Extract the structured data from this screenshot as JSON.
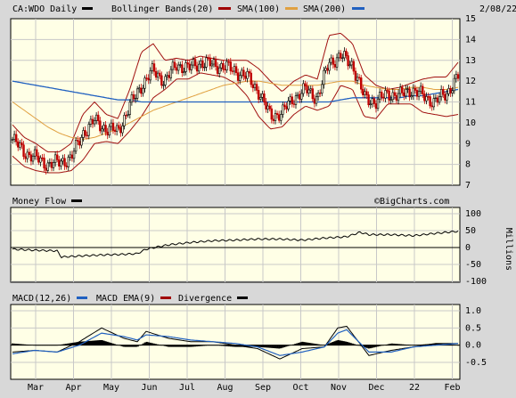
{
  "header": {
    "symbol": "CA:WDO Daily",
    "date": "2/08/22",
    "legend": [
      {
        "label": "Bollinger Bands(20)",
        "color": "#000000"
      },
      {
        "label": "SMA(100)",
        "color": "#a00000"
      },
      {
        "label": "SMA(200)",
        "color": "#e0a040"
      },
      {
        "label": "",
        "color": "#2060c0"
      }
    ]
  },
  "money_flow": {
    "title": "Money Flow",
    "watermark": "©BigCharts.com",
    "unit_label": "Millions"
  },
  "macd": {
    "legend": [
      {
        "label": "MACD(12,26)",
        "color": "#000000"
      },
      {
        "label": "MACD EMA(9)",
        "color": "#2060c0"
      },
      {
        "label": "Divergence",
        "color": "#000000"
      }
    ]
  },
  "colors": {
    "panel_bg": "#ffffe6",
    "grid": "#c8c8c8",
    "bollinger": "#a01010",
    "sma100": "#e0a040",
    "sma200": "#2060c0",
    "candle_up": "#000000",
    "candle_down": "#c00000"
  },
  "chart_data": [
    {
      "type": "candlestick",
      "panel": "price",
      "x_labels": [
        "Mar",
        "Apr",
        "May",
        "Jun",
        "Jul",
        "Aug",
        "Sep",
        "Oct",
        "Nov",
        "Dec",
        "22",
        "Feb"
      ],
      "ylim": [
        7,
        15
      ],
      "yticks": [
        7,
        8,
        9,
        10,
        11,
        12,
        13,
        14,
        15
      ],
      "close": [
        9.2,
        8.6,
        8.3,
        8.0,
        8.1,
        8.3,
        9.5,
        10.1,
        9.7,
        9.6,
        10.8,
        11.8,
        12.5,
        12.0,
        12.8,
        12.6,
        12.9,
        12.8,
        12.7,
        12.5,
        12.2,
        11.5,
        10.3,
        10.5,
        11.2,
        11.6,
        11.2,
        12.9,
        13.2,
        12.8,
        11.2,
        11.0,
        11.4,
        11.3,
        11.6,
        11.3,
        11.0,
        11.4,
        12.2
      ],
      "series": [
        {
          "name": "Bollinger Bands(20) upper",
          "values": [
            9.9,
            9.3,
            9.0,
            8.6,
            8.6,
            9.0,
            10.4,
            11.0,
            10.4,
            10.2,
            11.6,
            13.4,
            13.8,
            13.0,
            13.1,
            13.0,
            13.2,
            13.1,
            13.0,
            13.0,
            13.0,
            12.6,
            12.0,
            11.5,
            12.0,
            12.3,
            12.1,
            14.2,
            14.3,
            13.8,
            12.3,
            11.8,
            11.6,
            11.7,
            11.9,
            12.1,
            12.2,
            12.2,
            12.9
          ]
        },
        {
          "name": "Bollinger Bands(20) lower",
          "values": [
            8.4,
            7.9,
            7.7,
            7.6,
            7.6,
            7.7,
            8.2,
            9.0,
            9.1,
            9.0,
            9.6,
            10.3,
            11.2,
            11.6,
            12.1,
            12.1,
            12.4,
            12.3,
            12.2,
            11.9,
            11.3,
            10.3,
            9.7,
            9.8,
            10.4,
            10.8,
            10.6,
            10.8,
            11.8,
            11.6,
            10.3,
            10.2,
            10.9,
            10.9,
            10.9,
            10.5,
            10.4,
            10.3,
            10.4
          ]
        },
        {
          "name": "SMA(100)",
          "values": [
            11.0,
            10.6,
            10.2,
            9.8,
            9.5,
            9.3,
            9.2,
            9.3,
            9.5,
            9.7,
            10.0,
            10.3,
            10.6,
            10.8,
            11.0,
            11.2,
            11.4,
            11.6,
            11.8,
            11.9,
            12.0,
            12.0,
            11.9,
            11.8,
            11.8,
            11.8,
            11.8,
            11.9,
            12.0,
            12.0,
            11.8,
            11.7,
            11.6,
            11.6,
            11.7,
            11.7,
            11.6,
            11.6,
            11.7
          ]
        },
        {
          "name": "SMA(200)",
          "values": [
            12.0,
            11.9,
            11.8,
            11.7,
            11.6,
            11.5,
            11.4,
            11.3,
            11.2,
            11.1,
            11.1,
            11.0,
            11.0,
            11.0,
            11.0,
            11.0,
            11.0,
            11.0,
            11.0,
            11.0,
            11.0,
            11.0,
            11.0,
            11.0,
            11.0,
            11.0,
            11.0,
            11.0,
            11.1,
            11.2,
            11.2,
            11.2,
            11.2,
            11.2,
            11.3,
            11.3,
            11.4,
            11.5,
            11.6
          ]
        }
      ]
    },
    {
      "type": "line",
      "panel": "money_flow",
      "title": "Money Flow",
      "ylabel": "Millions",
      "ylim": [
        -100,
        100
      ],
      "yticks": [
        100,
        50,
        0,
        -50,
        -100
      ],
      "x": [
        0,
        0.05,
        0.1,
        0.11,
        0.15,
        0.2,
        0.25,
        0.28,
        0.3,
        0.35,
        0.4,
        0.45,
        0.5,
        0.55,
        0.6,
        0.65,
        0.7,
        0.75,
        0.78,
        0.8,
        0.85,
        0.9,
        0.95,
        1.0
      ],
      "values": [
        -5,
        -8,
        -10,
        -28,
        -25,
        -22,
        -20,
        -18,
        -5,
        8,
        15,
        20,
        22,
        25,
        25,
        22,
        28,
        32,
        45,
        38,
        38,
        35,
        42,
        48
      ]
    },
    {
      "type": "line",
      "panel": "macd",
      "ylim": [
        -0.5,
        1.0
      ],
      "yticks": [
        1.0,
        0.5,
        0.0,
        -0.5
      ],
      "x": [
        0,
        0.05,
        0.1,
        0.15,
        0.2,
        0.25,
        0.28,
        0.3,
        0.35,
        0.4,
        0.45,
        0.5,
        0.55,
        0.6,
        0.65,
        0.7,
        0.73,
        0.75,
        0.8,
        0.85,
        0.9,
        0.95,
        1.0
      ],
      "series": [
        {
          "name": "MACD(12,26)",
          "values": [
            -0.2,
            -0.15,
            -0.2,
            0.1,
            0.5,
            0.2,
            0.1,
            0.4,
            0.2,
            0.1,
            0.1,
            0.0,
            -0.1,
            -0.4,
            -0.1,
            -0.05,
            0.5,
            0.55,
            -0.3,
            -0.15,
            -0.05,
            0.05,
            0.05
          ]
        },
        {
          "name": "MACD EMA(9)",
          "values": [
            -0.25,
            -0.15,
            -0.2,
            0.0,
            0.35,
            0.25,
            0.15,
            0.3,
            0.25,
            0.15,
            0.1,
            0.05,
            -0.05,
            -0.3,
            -0.2,
            -0.05,
            0.35,
            0.45,
            -0.2,
            -0.2,
            -0.05,
            0.0,
            0.05
          ]
        },
        {
          "name": "Divergence",
          "values": [
            0.05,
            0.0,
            0.0,
            0.1,
            0.15,
            -0.05,
            -0.05,
            0.1,
            -0.05,
            -0.05,
            0.0,
            -0.05,
            -0.05,
            -0.1,
            0.1,
            0.0,
            0.15,
            0.1,
            -0.1,
            0.05,
            0.0,
            0.05,
            0.0
          ]
        }
      ]
    }
  ]
}
